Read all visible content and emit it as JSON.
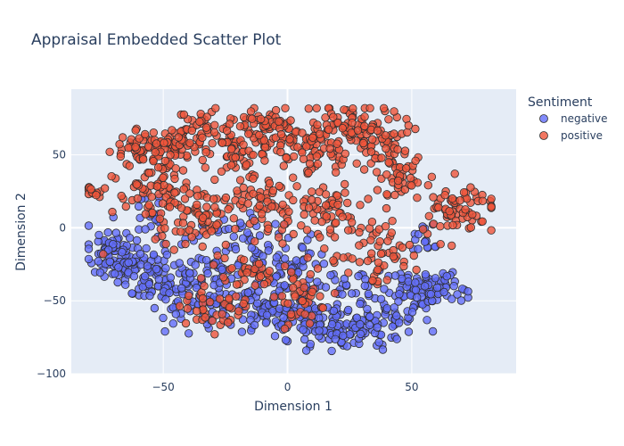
{
  "chart_data": {
    "type": "scatter",
    "title": "Appraisal Embedded Scatter Plot",
    "xlabel": "Dimension 1",
    "ylabel": "Dimension 2",
    "xlim": [
      -87,
      92
    ],
    "ylim": [
      -100,
      95
    ],
    "xticks": [
      -50,
      0,
      50
    ],
    "yticks": [
      -100,
      -50,
      0,
      50
    ],
    "tick_labels": {
      "x": [
        "−50",
        "0",
        "50"
      ],
      "y": [
        "−100",
        "−50",
        "0",
        "50"
      ]
    },
    "grid": true,
    "legend": {
      "title": "Sentiment",
      "position": "top-right"
    },
    "marker": {
      "opacity": 0.8,
      "outline": "#2f2f2f"
    },
    "series": [
      {
        "name": "negative",
        "color": "#636efa",
        "clusters": [
          {
            "center": [
              -70,
              -18
            ],
            "spread": [
              5,
              10
            ],
            "n": 90
          },
          {
            "center": [
              -55,
              -30
            ],
            "spread": [
              6,
              12
            ],
            "n": 70
          },
          {
            "center": [
              -40,
              -40
            ],
            "spread": [
              8,
              12
            ],
            "n": 70
          },
          {
            "center": [
              -25,
              -45
            ],
            "spread": [
              10,
              12
            ],
            "n": 60
          },
          {
            "center": [
              -10,
              -55
            ],
            "spread": [
              8,
              10
            ],
            "n": 55
          },
          {
            "center": [
              5,
              -60
            ],
            "spread": [
              7,
              10
            ],
            "n": 50
          },
          {
            "center": [
              20,
              -70
            ],
            "spread": [
              8,
              8
            ],
            "n": 60
          },
          {
            "center": [
              35,
              -62
            ],
            "spread": [
              8,
              10
            ],
            "n": 70
          },
          {
            "center": [
              50,
              -45
            ],
            "spread": [
              6,
              8
            ],
            "n": 60
          },
          {
            "center": [
              62,
              -40
            ],
            "spread": [
              5,
              5
            ],
            "n": 40
          },
          {
            "center": [
              -20,
              -10
            ],
            "spread": [
              10,
              10
            ],
            "n": 40
          },
          {
            "center": [
              0,
              -20
            ],
            "spread": [
              8,
              10
            ],
            "n": 40
          },
          {
            "center": [
              15,
              -35
            ],
            "spread": [
              10,
              8
            ],
            "n": 40
          },
          {
            "center": [
              -55,
              10
            ],
            "spread": [
              4,
              6
            ],
            "n": 15
          },
          {
            "center": [
              55,
              -8
            ],
            "spread": [
              4,
              5
            ],
            "n": 15
          }
        ]
      },
      {
        "name": "positive",
        "color": "#ef553b",
        "clusters": [
          {
            "center": [
              -78,
              25
            ],
            "spread": [
              2,
              2
            ],
            "n": 14
          },
          {
            "center": [
              -60,
              55
            ],
            "spread": [
              5,
              5
            ],
            "n": 45
          },
          {
            "center": [
              -45,
              55
            ],
            "spread": [
              6,
              8
            ],
            "n": 60
          },
          {
            "center": [
              -35,
              70
            ],
            "spread": [
              4,
              6
            ],
            "n": 30
          },
          {
            "center": [
              -20,
              55
            ],
            "spread": [
              7,
              12
            ],
            "n": 80
          },
          {
            "center": [
              -5,
              65
            ],
            "spread": [
              6,
              8
            ],
            "n": 60
          },
          {
            "center": [
              15,
              55
            ],
            "spread": [
              8,
              12
            ],
            "n": 80
          },
          {
            "center": [
              25,
              72
            ],
            "spread": [
              6,
              6
            ],
            "n": 50
          },
          {
            "center": [
              40,
              60
            ],
            "spread": [
              6,
              10
            ],
            "n": 50
          },
          {
            "center": [
              45,
              35
            ],
            "spread": [
              5,
              8
            ],
            "n": 40
          },
          {
            "center": [
              70,
              12
            ],
            "spread": [
              8,
              8
            ],
            "n": 70
          },
          {
            "center": [
              -55,
              25
            ],
            "spread": [
              8,
              10
            ],
            "n": 60
          },
          {
            "center": [
              -35,
              10
            ],
            "spread": [
              10,
              10
            ],
            "n": 70
          },
          {
            "center": [
              -10,
              15
            ],
            "spread": [
              10,
              10
            ],
            "n": 60
          },
          {
            "center": [
              15,
              10
            ],
            "spread": [
              10,
              8
            ],
            "n": 50
          },
          {
            "center": [
              35,
              -15
            ],
            "spread": [
              10,
              12
            ],
            "n": 60
          },
          {
            "center": [
              5,
              -50
            ],
            "spread": [
              6,
              12
            ],
            "n": 40
          },
          {
            "center": [
              -30,
              -55
            ],
            "spread": [
              8,
              8
            ],
            "n": 40
          },
          {
            "center": [
              -15,
              -30
            ],
            "spread": [
              8,
              10
            ],
            "n": 35
          }
        ]
      }
    ]
  }
}
